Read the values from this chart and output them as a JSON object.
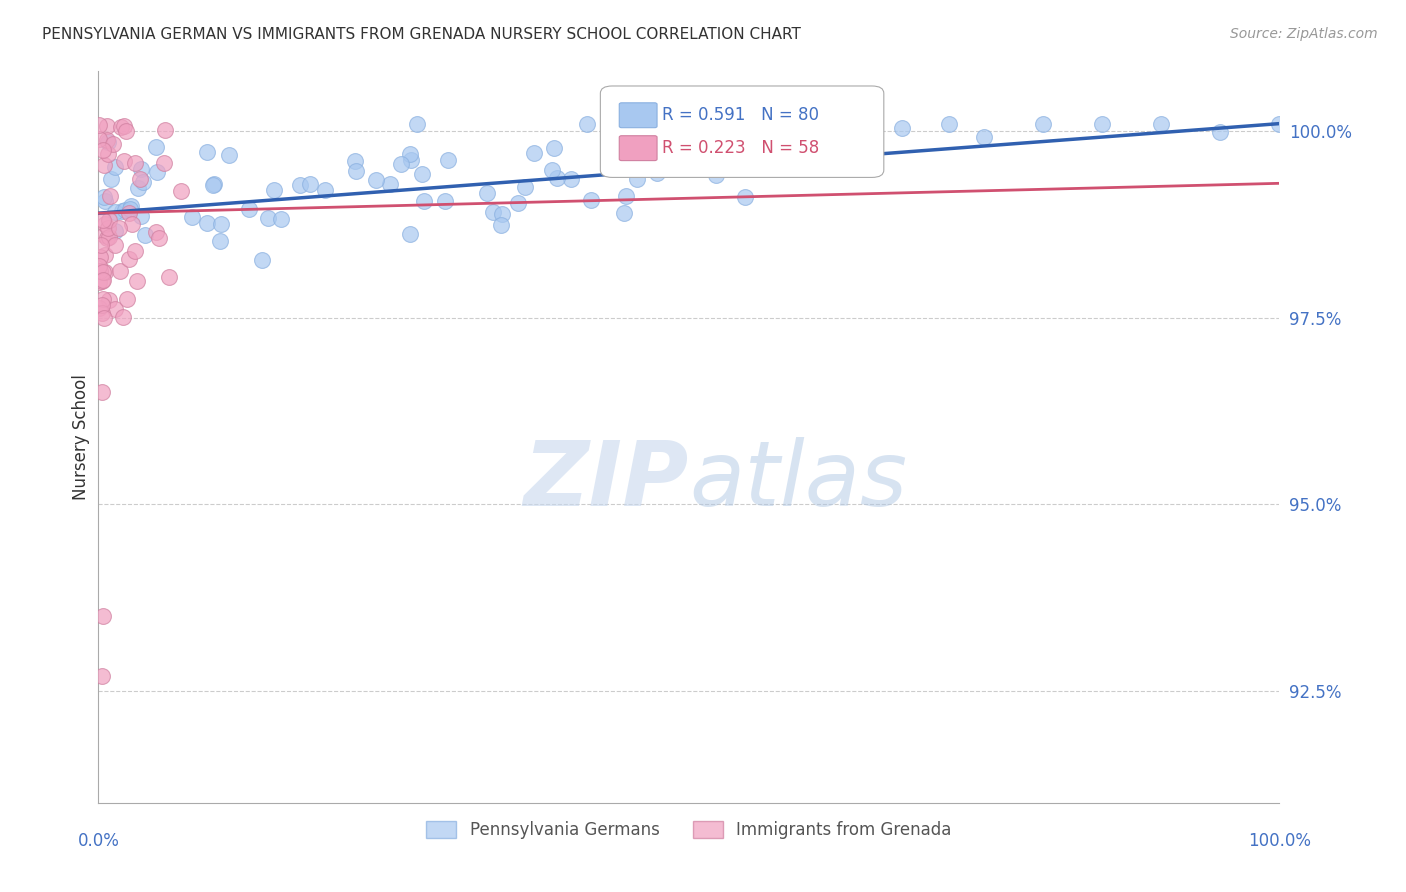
{
  "title": "PENNSYLVANIA GERMAN VS IMMIGRANTS FROM GRENADA NURSERY SCHOOL CORRELATION CHART",
  "source": "Source: ZipAtlas.com",
  "ylabel": "Nursery School",
  "ytick_labels": [
    "100.0%",
    "97.5%",
    "95.0%",
    "92.5%"
  ],
  "ytick_values": [
    1.0,
    0.975,
    0.95,
    0.925
  ],
  "xlim": [
    0.0,
    1.0
  ],
  "ylim": [
    0.91,
    1.008
  ],
  "blue_color": "#a8c8f0",
  "pink_color": "#f0a0c0",
  "blue_line_color": "#3060b0",
  "pink_line_color": "#d05070",
  "R_blue": 0.591,
  "N_blue": 80,
  "R_pink": 0.223,
  "N_pink": 58,
  "watermark_zip": "ZIP",
  "watermark_atlas": "atlas",
  "grid_color": "#cccccc",
  "legend_box_color": "#e8f0fc",
  "legend_box_edge": "#b0c8e8"
}
